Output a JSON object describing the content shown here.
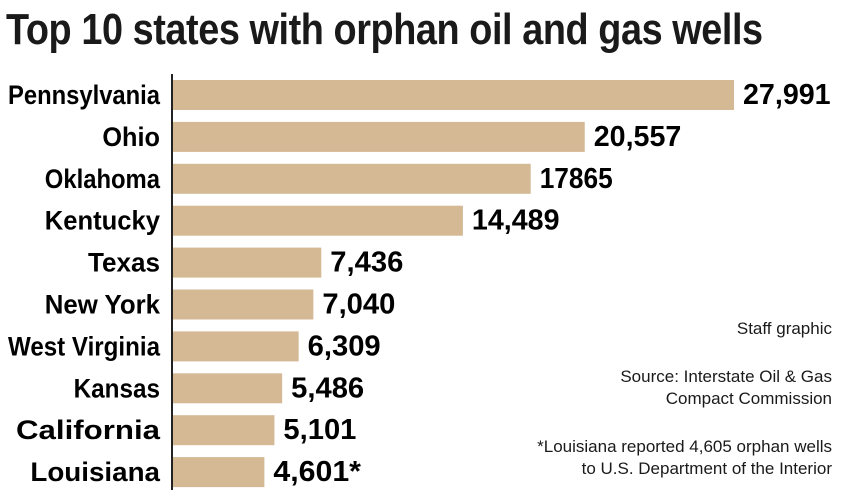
{
  "chart_data": {
    "type": "bar",
    "orientation": "horizontal",
    "title": "Top 10 states with orphan oil and gas wells",
    "categories": [
      "Pennsylvania",
      "Ohio",
      "Oklahoma",
      "Kentucky",
      "Texas",
      "New York",
      "West Virginia",
      "Kansas",
      "California",
      "Louisiana"
    ],
    "values": [
      27991,
      20557,
      17865,
      14489,
      7436,
      7040,
      6309,
      5486,
      5101,
      4601
    ],
    "value_labels": [
      "27,991",
      "20,557",
      "17865",
      "14,489",
      "7,436",
      "7,040",
      "6,309",
      "5,486",
      "5,101",
      "4,601*"
    ],
    "xlim": [
      0,
      27991
    ],
    "grid": false,
    "bar_color": "#d4b994"
  },
  "notes": {
    "credit": "Staff graphic",
    "source_line1": "Source: Interstate Oil & Gas",
    "source_line2": "Compact Commission",
    "footnote_line1": "*Louisiana reported 4,605 orphan wells",
    "footnote_line2": "to U.S. Department of the Interior"
  }
}
